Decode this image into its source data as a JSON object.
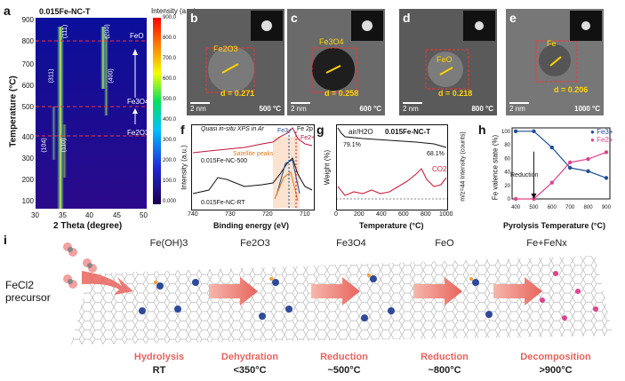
{
  "panels": {
    "a": {
      "letter": "a",
      "title": "0.015Fe-NC-T",
      "colorbar_title": "Intensity (a.u.)",
      "colorbar_ticks": [
        "900.0",
        "800.0",
        "700.0",
        "600.0",
        "500.0",
        "400.0",
        "300.0",
        "200.0",
        "100.0",
        "0.000"
      ],
      "xlabel": "2 Theta (degree)",
      "ylabel": "Temperature (°C)",
      "xticks": [
        "30",
        "35",
        "40",
        "45",
        "50"
      ],
      "yticks": [
        "100",
        "200",
        "300",
        "400",
        "500",
        "600",
        "700",
        "800",
        "900"
      ],
      "peaks": [
        "(111)",
        "(200)",
        "(311)",
        "(400)",
        "(104)",
        "(110)"
      ],
      "phases": [
        "FeO",
        "Fe3O4",
        "Fe2O3"
      ]
    },
    "b": {
      "letter": "b",
      "phase": "Fe2O3",
      "d": "d = 0.271",
      "scale": "2 nm",
      "temp": "500 °C"
    },
    "c": {
      "letter": "c",
      "phase": "Fe3O4",
      "d": "d = 0.258",
      "scale": "2 nm",
      "temp": "600 °C"
    },
    "d": {
      "letter": "d",
      "phase": "FeO",
      "d": "d = 0.218",
      "scale": "2 nm",
      "temp": "800 °C"
    },
    "e": {
      "letter": "e",
      "phase": "Fe",
      "d": "d = 0.206",
      "scale": "2 nm",
      "temp": "1000 °C"
    },
    "f": {
      "letter": "f",
      "title": "Quasi in-situ XPS in Ar",
      "xlabel": "Binding energy (eV)",
      "ylabel": "Intensity (a.u.)",
      "xticks": [
        "740",
        "730",
        "720",
        "710"
      ],
      "series_top": "0.015Fe-NC-500",
      "series_bottom": "0.015Fe-NC-RT",
      "satellite": "Satellite peaks",
      "fe2p": "Fe 2p",
      "fe3": "Fe3+",
      "fe2": "Fe2+"
    },
    "g": {
      "letter": "g",
      "sample": "0.015Fe-NC-T",
      "atmos": "air/H2O",
      "xlabel": "Temperature (°C)",
      "ylabel_left": "Weight (%)",
      "ylabel_right": "m/z=44 Intensity (counts)",
      "xticks": [
        "0",
        "200",
        "400",
        "600",
        "800",
        "1000"
      ],
      "yticks": [
        "90",
        "80",
        "70",
        "60",
        "50",
        "40",
        "30",
        "20",
        "10"
      ],
      "yticks_right": [
        "20",
        "15",
        "10",
        "5",
        "0"
      ],
      "ann1": "79.1%",
      "ann2": "68.1%",
      "co2": "CO2"
    },
    "h": {
      "letter": "h",
      "xlabel": "Pyrolysis Temperature (°C)",
      "ylabel": "Fe valence state (%)",
      "xticks": [
        "400",
        "500",
        "600",
        "700",
        "800",
        "900"
      ],
      "yticks": [
        "0",
        "20",
        "40",
        "60",
        "80",
        "100"
      ],
      "legend_fe3": "Fe3+",
      "legend_fe2": "Fe2+",
      "reduction": "Reduction"
    },
    "i": {
      "letter": "i",
      "precursor_line1": "FeCl2",
      "precursor_line2": "precursor",
      "stages": [
        "Fe(OH)3",
        "Fe2O3",
        "Fe3O4",
        "FeO",
        "Fe+FeNx"
      ],
      "steps": [
        {
          "name": "Hydrolysis",
          "temp": "RT"
        },
        {
          "name": "Dehydration",
          "temp": "<350°C"
        },
        {
          "name": "Reduction",
          "temp": "~500°C"
        },
        {
          "name": "Reduction",
          "temp": "~800°C"
        },
        {
          "name": "Decomposition",
          "temp": ">900°C"
        }
      ]
    }
  },
  "chart_data": [
    {
      "type": "line",
      "panel": "h",
      "x": [
        400,
        500,
        600,
        700,
        800,
        900
      ],
      "series": [
        {
          "name": "Fe3+",
          "color": "#1f4e9a",
          "values": [
            100,
            100,
            76,
            46,
            41,
            31
          ]
        },
        {
          "name": "Fe2+",
          "color": "#e0438c",
          "values": [
            0,
            0,
            24,
            54,
            59,
            69
          ]
        }
      ],
      "xlabel": "Pyrolysis Temperature (°C)",
      "ylabel": "Fe valence state (%)",
      "ylim": [
        0,
        105
      ]
    }
  ]
}
